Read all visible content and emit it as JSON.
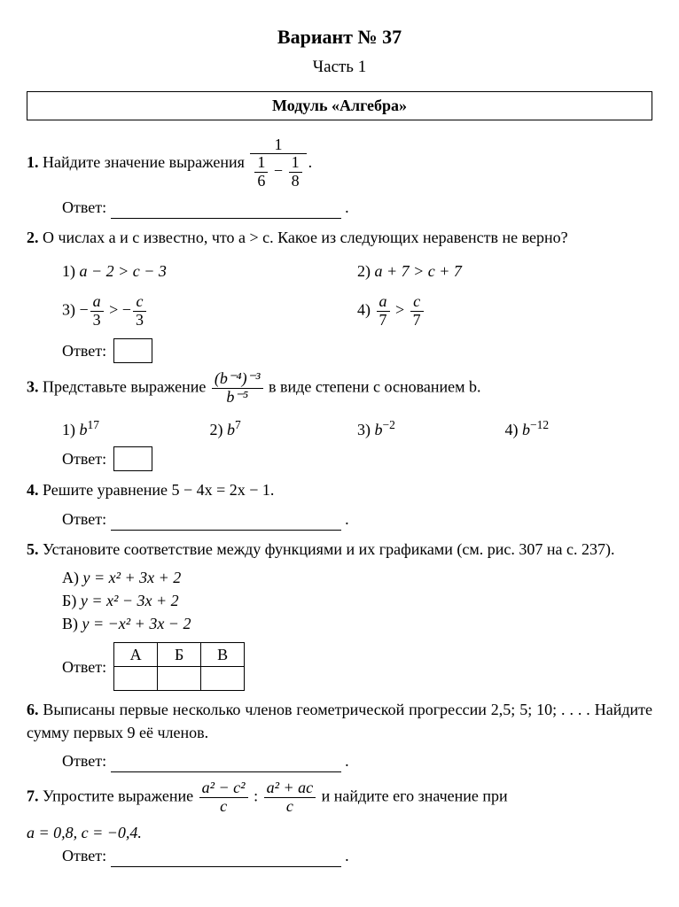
{
  "title": "Вариант № 37",
  "subtitle": "Часть 1",
  "module": "Модуль «Алгебра»",
  "answer_label": "Ответ:",
  "dot": ".",
  "t1": {
    "num": "1.",
    "text_before": " Найдите значение выражения ",
    "frac_top": "1",
    "sub_a_top": "1",
    "sub_a_bot": "6",
    "minus": " − ",
    "sub_b_top": "1",
    "sub_b_bot": "8"
  },
  "t2": {
    "num": "2.",
    "text": " О числах a и c известно, что a > c. Какое из следующих неравенств не верно?",
    "o1_label": "1) ",
    "o1": "a − 2 > c − 3",
    "o2_label": "2) ",
    "o2": "a + 7 > c + 7",
    "o3_label": "3) ",
    "o3_pre": "−",
    "o3_a_top": "a",
    "o3_a_bot": "3",
    "o3_mid": " > −",
    "o3_b_top": "c",
    "o3_b_bot": "3",
    "o4_label": "4) ",
    "o4_a_top": "a",
    "o4_a_bot": "7",
    "o4_mid": " > ",
    "o4_b_top": "c",
    "o4_b_bot": "7"
  },
  "t3": {
    "num": "3.",
    "text_before": " Представьте выражение ",
    "frac_top_html": "(b⁻⁴)⁻³",
    "frac_bot_html": "b⁻⁵",
    "text_after": " в виде степени с основанием b.",
    "o1_label": "1) ",
    "o1_base": "b",
    "o1_exp": "17",
    "o2_label": "2) ",
    "o2_base": "b",
    "o2_exp": "7",
    "o3_label": "3) ",
    "o3_base": "b",
    "o3_exp": "−2",
    "o4_label": "4) ",
    "o4_base": "b",
    "o4_exp": "−12"
  },
  "t4": {
    "num": "4.",
    "text": " Решите уравнение 5 − 4x = 2x − 1."
  },
  "t5": {
    "num": "5.",
    "text": " Установите соответствие между функциями и их графиками (см. рис. 307 на с. 237).",
    "a_label": "А) ",
    "a": "y = x² + 3x + 2",
    "b_label": "Б) ",
    "b": "y = x² − 3x + 2",
    "c_label": "В) ",
    "c": "y = −x² + 3x − 2",
    "th1": "А",
    "th2": "Б",
    "th3": "В"
  },
  "t6": {
    "num": "6.",
    "text": " Выписаны первые несколько членов геометрической прогрессии 2,5; 5; 10; . . . . Найдите сумму первых 9 её членов."
  },
  "t7": {
    "num": "7.",
    "text_before": " Упростите выражение ",
    "f1_top": "a² − c²",
    "f1_bot": "c",
    "div": " : ",
    "f2_top": "a² + ac",
    "f2_bot": "c",
    "text_after": " и найдите его значение при ",
    "cond": "a = 0,8, c = −0,4."
  }
}
